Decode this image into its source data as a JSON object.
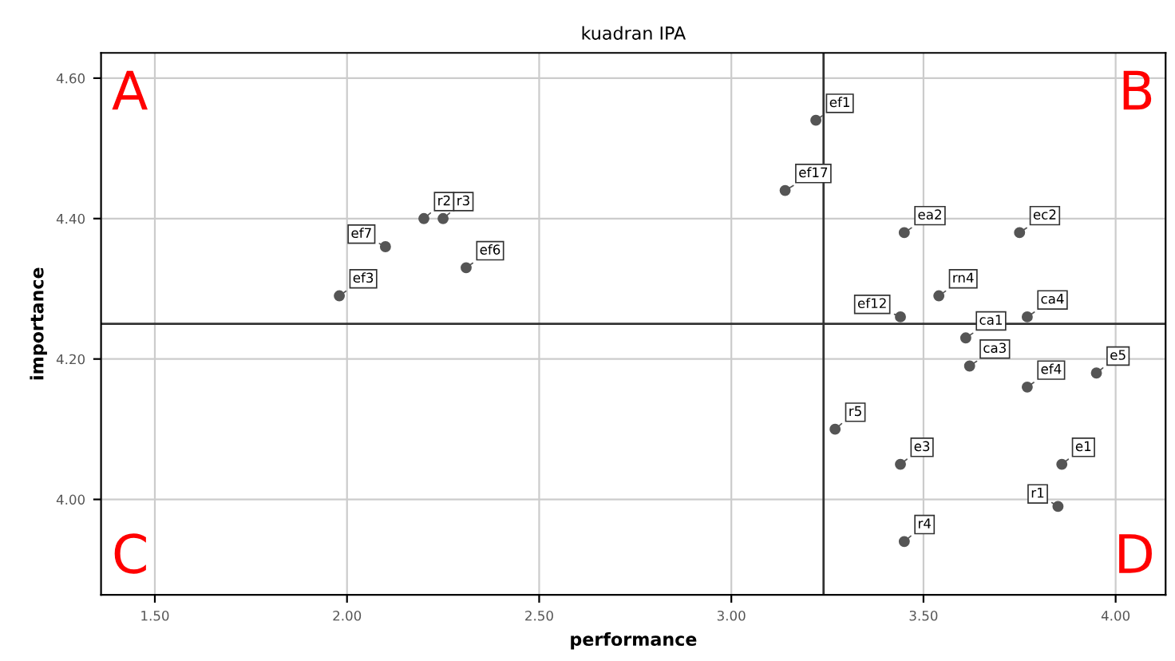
{
  "chart_data": {
    "type": "scatter",
    "title": "kuadran IPA",
    "xlabel": "performance",
    "ylabel": "importance",
    "x": [
      1.98,
      2.1,
      2.2,
      2.25,
      2.31,
      3.22,
      3.14,
      3.45,
      3.75,
      3.54,
      3.44,
      3.61,
      3.77,
      3.62,
      3.77,
      3.95,
      3.27,
      3.44,
      3.86,
      3.85,
      3.45
    ],
    "values": [
      4.29,
      4.36,
      4.4,
      4.4,
      4.33,
      4.54,
      4.44,
      4.38,
      4.38,
      4.29,
      4.26,
      4.23,
      4.26,
      4.19,
      4.16,
      4.18,
      4.1,
      4.05,
      4.05,
      3.99,
      3.94
    ],
    "value_labels": [
      "ef3",
      "ef7",
      "r2",
      "r3",
      "ef6",
      "ef1",
      "ef17",
      "ea2",
      "ec2",
      "rn4",
      "ef12",
      "ca1",
      "ca4",
      "ca3",
      "ef4",
      "e5",
      "r5",
      "e3",
      "e1",
      "r1",
      "r4"
    ],
    "color": "#555555",
    "marker": "circle",
    "grid": true,
    "xlim": [
      1.36,
      4.13
    ],
    "ylim": [
      3.864,
      4.636
    ],
    "xticks": [
      {
        "value": 1.5,
        "label": "1.50"
      },
      {
        "value": 2.0,
        "label": "2.00"
      },
      {
        "value": 2.5,
        "label": "2.50"
      },
      {
        "value": 3.0,
        "label": "3.00"
      },
      {
        "value": 3.5,
        "label": "3.50"
      },
      {
        "value": 4.0,
        "label": "4.00"
      }
    ],
    "yticks": [
      {
        "value": 4.0,
        "label": "4.00"
      },
      {
        "value": 4.2,
        "label": "4.20"
      },
      {
        "value": 4.4,
        "label": "4.40"
      },
      {
        "value": 4.6,
        "label": "4.60"
      }
    ],
    "ref_lines": [
      {
        "axis": "x",
        "value": 3.24,
        "color": "#333333"
      },
      {
        "axis": "y",
        "value": 4.25,
        "color": "#333333"
      }
    ],
    "annotations": [
      "A",
      "B",
      "C",
      "D"
    ]
  }
}
